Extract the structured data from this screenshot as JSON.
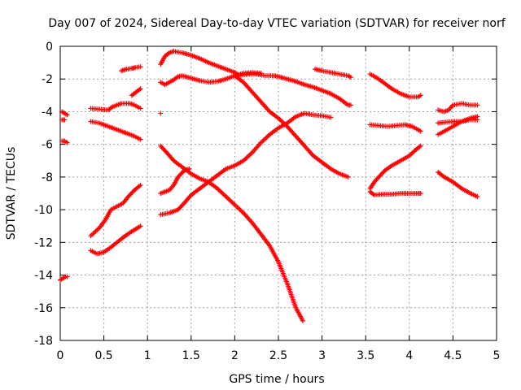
{
  "chart_data": {
    "type": "scatter",
    "title": "Day 007 of 2024, Sidereal Day-to-day VTEC variation (SDTVAR) for receiver norf",
    "xlabel": "GPS time / hours",
    "ylabel": "SDTVAR / TECUs",
    "xlim": [
      0,
      5
    ],
    "ylim": [
      -18,
      0
    ],
    "xticks": [
      "0",
      "0.5",
      "1",
      "1.5",
      "2",
      "2.5",
      "3",
      "3.5",
      "4",
      "4.5",
      "5"
    ],
    "yticks": [
      "0",
      "-2",
      "-4",
      "-6",
      "-8",
      "-10",
      "-12",
      "-14",
      "-16",
      "-18"
    ],
    "grid": true,
    "marker": "plus",
    "marker_color": "#ff0000",
    "series": [
      {
        "points": [
          [
            0.02,
            -4.0
          ],
          [
            0.05,
            -4.1
          ],
          [
            0.08,
            -4.2
          ]
        ]
      },
      {
        "points": [
          [
            0.02,
            -4.5
          ],
          [
            0.05,
            -4.5
          ]
        ]
      },
      {
        "points": [
          [
            0.02,
            -5.8
          ],
          [
            0.05,
            -5.8
          ],
          [
            0.08,
            -5.9
          ]
        ]
      },
      {
        "points": [
          [
            0.0,
            -14.3
          ],
          [
            0.03,
            -14.2
          ],
          [
            0.06,
            -14.1
          ],
          [
            0.08,
            -14.1
          ]
        ]
      },
      {
        "points": [
          [
            0.35,
            -3.8
          ],
          [
            0.45,
            -3.85
          ],
          [
            0.55,
            -3.9
          ],
          [
            0.6,
            -3.7
          ],
          [
            0.7,
            -3.5
          ],
          [
            0.8,
            -3.5
          ],
          [
            0.85,
            -3.6
          ],
          [
            0.92,
            -3.8
          ]
        ]
      },
      {
        "points": [
          [
            0.35,
            -4.6
          ],
          [
            0.45,
            -4.7
          ],
          [
            0.55,
            -4.9
          ],
          [
            0.65,
            -5.1
          ],
          [
            0.75,
            -5.3
          ],
          [
            0.85,
            -5.5
          ],
          [
            0.92,
            -5.7
          ]
        ]
      },
      {
        "points": [
          [
            0.35,
            -11.6
          ],
          [
            0.45,
            -11.1
          ],
          [
            0.52,
            -10.6
          ],
          [
            0.58,
            -10.0
          ],
          [
            0.65,
            -9.8
          ],
          [
            0.72,
            -9.6
          ],
          [
            0.78,
            -9.2
          ],
          [
            0.85,
            -8.8
          ],
          [
            0.92,
            -8.5
          ]
        ]
      },
      {
        "points": [
          [
            0.35,
            -12.5
          ],
          [
            0.42,
            -12.7
          ],
          [
            0.5,
            -12.6
          ],
          [
            0.58,
            -12.3
          ],
          [
            0.65,
            -12.0
          ],
          [
            0.72,
            -11.7
          ],
          [
            0.8,
            -11.4
          ],
          [
            0.86,
            -11.2
          ],
          [
            0.92,
            -11.0
          ]
        ]
      },
      {
        "points": [
          [
            0.7,
            -1.5
          ],
          [
            0.76,
            -1.4
          ],
          [
            0.82,
            -1.35
          ],
          [
            0.86,
            -1.3
          ],
          [
            0.92,
            -1.25
          ]
        ]
      },
      {
        "points": [
          [
            0.82,
            -3.0
          ],
          [
            0.87,
            -2.8
          ],
          [
            0.92,
            -2.6
          ]
        ]
      },
      {
        "points": [
          [
            1.15,
            -4.1
          ]
        ]
      },
      {
        "points": [
          [
            1.15,
            -2.2
          ],
          [
            1.2,
            -2.35
          ],
          [
            1.25,
            -2.2
          ],
          [
            1.3,
            -2.05
          ],
          [
            1.35,
            -1.85
          ],
          [
            1.4,
            -1.8
          ],
          [
            1.5,
            -1.95
          ],
          [
            1.6,
            -2.1
          ],
          [
            1.7,
            -2.2
          ],
          [
            1.8,
            -2.15
          ],
          [
            1.9,
            -2.0
          ],
          [
            2.0,
            -1.8
          ],
          [
            2.1,
            -1.65
          ],
          [
            2.2,
            -1.6
          ],
          [
            2.3,
            -1.65
          ]
        ]
      },
      {
        "points": [
          [
            1.15,
            -1.1
          ],
          [
            1.2,
            -0.6
          ],
          [
            1.25,
            -0.4
          ],
          [
            1.3,
            -0.3
          ],
          [
            1.4,
            -0.4
          ],
          [
            1.5,
            -0.55
          ],
          [
            1.6,
            -0.75
          ],
          [
            1.7,
            -1.0
          ],
          [
            1.8,
            -1.2
          ],
          [
            1.9,
            -1.4
          ],
          [
            2.0,
            -1.6
          ],
          [
            2.05,
            -1.8
          ]
        ]
      },
      {
        "points": [
          [
            1.15,
            -6.1
          ],
          [
            1.22,
            -6.5
          ],
          [
            1.3,
            -7.0
          ],
          [
            1.4,
            -7.4
          ],
          [
            1.5,
            -7.8
          ],
          [
            1.6,
            -8.1
          ],
          [
            1.7,
            -8.3
          ],
          [
            1.8,
            -8.7
          ],
          [
            1.9,
            -9.2
          ],
          [
            2.0,
            -9.7
          ],
          [
            2.1,
            -10.2
          ],
          [
            2.2,
            -10.8
          ],
          [
            2.3,
            -11.5
          ],
          [
            2.4,
            -12.2
          ],
          [
            2.5,
            -13.2
          ],
          [
            2.6,
            -14.5
          ],
          [
            2.7,
            -16.0
          ],
          [
            2.78,
            -16.8
          ]
        ]
      },
      {
        "points": [
          [
            1.15,
            -9.0
          ],
          [
            1.25,
            -8.8
          ],
          [
            1.3,
            -8.5
          ],
          [
            1.35,
            -8.0
          ],
          [
            1.42,
            -7.6
          ],
          [
            1.48,
            -7.5
          ]
        ]
      },
      {
        "points": [
          [
            1.15,
            -10.3
          ],
          [
            1.25,
            -10.2
          ],
          [
            1.35,
            -10.0
          ],
          [
            1.42,
            -9.6
          ],
          [
            1.5,
            -9.1
          ],
          [
            1.6,
            -8.7
          ],
          [
            1.7,
            -8.3
          ],
          [
            1.8,
            -7.9
          ],
          [
            1.9,
            -7.5
          ],
          [
            2.0,
            -7.3
          ],
          [
            2.1,
            -7.0
          ],
          [
            2.2,
            -6.5
          ],
          [
            2.3,
            -5.9
          ],
          [
            2.4,
            -5.4
          ],
          [
            2.5,
            -5.0
          ],
          [
            2.6,
            -4.7
          ],
          [
            2.7,
            -4.3
          ],
          [
            2.8,
            -4.1
          ],
          [
            2.9,
            -4.2
          ],
          [
            3.0,
            -4.25
          ],
          [
            3.1,
            -4.35
          ]
        ]
      },
      {
        "points": [
          [
            2.0,
            -1.8
          ],
          [
            2.1,
            -2.2
          ],
          [
            2.2,
            -2.8
          ],
          [
            2.3,
            -3.4
          ],
          [
            2.4,
            -4.0
          ],
          [
            2.5,
            -4.4
          ],
          [
            2.6,
            -4.9
          ],
          [
            2.7,
            -5.5
          ],
          [
            2.8,
            -6.1
          ],
          [
            2.9,
            -6.7
          ],
          [
            3.0,
            -7.1
          ],
          [
            3.1,
            -7.5
          ],
          [
            3.2,
            -7.8
          ],
          [
            3.3,
            -8.0
          ]
        ]
      },
      {
        "points": [
          [
            2.05,
            -1.8
          ],
          [
            2.15,
            -1.7
          ],
          [
            2.25,
            -1.7
          ],
          [
            2.35,
            -1.8
          ],
          [
            2.45,
            -1.8
          ],
          [
            2.5,
            -1.85
          ],
          [
            2.6,
            -2.0
          ],
          [
            2.7,
            -2.15
          ],
          [
            2.8,
            -2.35
          ],
          [
            2.9,
            -2.5
          ],
          [
            3.0,
            -2.7
          ],
          [
            3.1,
            -2.9
          ],
          [
            3.2,
            -3.2
          ],
          [
            3.3,
            -3.6
          ],
          [
            3.33,
            -3.6
          ]
        ]
      },
      {
        "points": [
          [
            2.92,
            -1.4
          ],
          [
            3.0,
            -1.5
          ],
          [
            3.1,
            -1.6
          ],
          [
            3.2,
            -1.7
          ],
          [
            3.3,
            -1.8
          ],
          [
            3.33,
            -1.9
          ]
        ]
      },
      {
        "points": [
          [
            3.55,
            -1.7
          ],
          [
            3.62,
            -1.9
          ],
          [
            3.7,
            -2.2
          ],
          [
            3.8,
            -2.6
          ],
          [
            3.9,
            -2.9
          ],
          [
            4.0,
            -3.1
          ],
          [
            4.1,
            -3.1
          ],
          [
            4.13,
            -3.0
          ]
        ]
      },
      {
        "points": [
          [
            3.55,
            -4.8
          ],
          [
            3.65,
            -4.85
          ],
          [
            3.75,
            -4.9
          ],
          [
            3.85,
            -4.85
          ],
          [
            3.95,
            -4.8
          ],
          [
            4.03,
            -4.9
          ],
          [
            4.1,
            -5.1
          ],
          [
            4.13,
            -5.2
          ]
        ]
      },
      {
        "points": [
          [
            3.55,
            -8.7
          ],
          [
            3.6,
            -8.3
          ],
          [
            3.65,
            -8.0
          ],
          [
            3.72,
            -7.6
          ],
          [
            3.8,
            -7.3
          ],
          [
            3.9,
            -7.0
          ],
          [
            4.0,
            -6.7
          ],
          [
            4.08,
            -6.3
          ],
          [
            4.13,
            -6.1
          ]
        ]
      },
      {
        "points": [
          [
            3.55,
            -8.9
          ],
          [
            3.6,
            -9.1
          ],
          [
            3.7,
            -9.05
          ],
          [
            3.8,
            -9.05
          ],
          [
            3.9,
            -9.0
          ],
          [
            4.0,
            -9.0
          ],
          [
            4.1,
            -9.0
          ],
          [
            4.13,
            -9.0
          ]
        ]
      },
      {
        "points": [
          [
            4.33,
            -3.9
          ],
          [
            4.4,
            -4.0
          ],
          [
            4.45,
            -3.9
          ],
          [
            4.5,
            -3.6
          ],
          [
            4.6,
            -3.5
          ],
          [
            4.7,
            -3.6
          ],
          [
            4.78,
            -3.6
          ]
        ]
      },
      {
        "points": [
          [
            4.33,
            -4.7
          ],
          [
            4.4,
            -4.65
          ],
          [
            4.5,
            -4.6
          ],
          [
            4.6,
            -4.6
          ],
          [
            4.7,
            -4.5
          ],
          [
            4.78,
            -4.5
          ]
        ]
      },
      {
        "points": [
          [
            4.33,
            -5.4
          ],
          [
            4.4,
            -5.2
          ],
          [
            4.5,
            -4.9
          ],
          [
            4.6,
            -4.6
          ],
          [
            4.7,
            -4.4
          ],
          [
            4.78,
            -4.3
          ]
        ]
      },
      {
        "points": [
          [
            4.33,
            -7.7
          ],
          [
            4.4,
            -8.0
          ],
          [
            4.5,
            -8.3
          ],
          [
            4.6,
            -8.7
          ],
          [
            4.7,
            -9.0
          ],
          [
            4.78,
            -9.2
          ]
        ]
      }
    ]
  }
}
